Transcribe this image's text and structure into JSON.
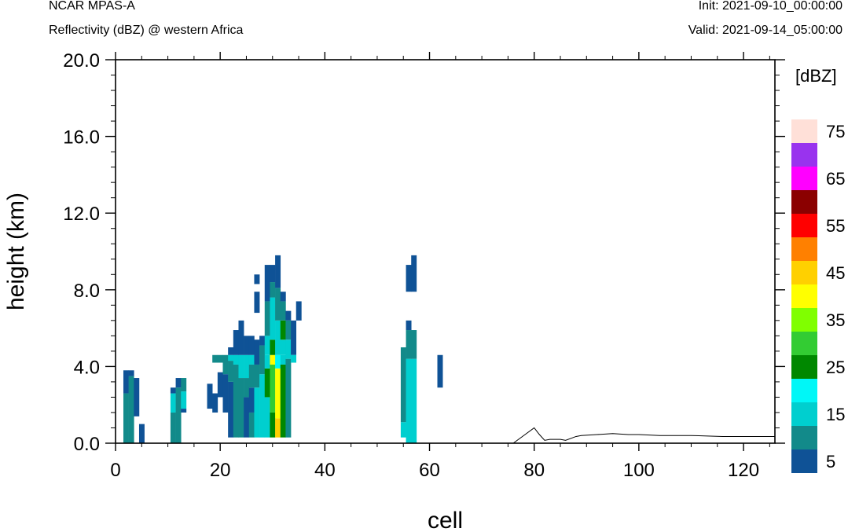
{
  "header": {
    "model": "NCAR MPAS-A",
    "field": "Reflectivity (dBZ) @ western Africa",
    "init": "Init: 2021-09-10_00:00:00",
    "valid": "Valid: 2021-09-14_05:00:00"
  },
  "chart_data": {
    "type": "heatmap",
    "xlabel": "cell",
    "ylabel": "height (km)",
    "xlim": [
      0,
      126
    ],
    "ylim": [
      0.0,
      20.0
    ],
    "x_ticks": [
      0,
      20,
      40,
      60,
      80,
      100,
      120
    ],
    "y_ticks": [
      0.0,
      4.0,
      8.0,
      12.0,
      16.0,
      20.0
    ],
    "y_tick_labels": [
      "0.0",
      "4.0",
      "8.0",
      "12.0",
      "16.0",
      "20.0"
    ],
    "grid": false,
    "colorbar": {
      "title": "[dBZ]",
      "placement": "right",
      "levels": [
        5,
        10,
        15,
        20,
        25,
        30,
        35,
        40,
        45,
        50,
        55,
        60,
        65,
        70,
        75
      ],
      "labels": [
        "5",
        "15",
        "25",
        "35",
        "45",
        "55",
        "65",
        "75"
      ],
      "colors": [
        "#0f5296",
        "#128a8a",
        "#00cfcf",
        "#00f7f7",
        "#008800",
        "#33cc33",
        "#80ff00",
        "#ffff00",
        "#ffd000",
        "#ff8000",
        "#ff0000",
        "#8b0000",
        "#ff00ff",
        "#9933ee",
        "#ffe0d8"
      ]
    },
    "cells": [
      {
        "x": 2,
        "y0": 0.0,
        "y1": 2.6,
        "dbz": 10
      },
      {
        "x": 2,
        "y0": 2.6,
        "y1": 3.8,
        "dbz": 5
      },
      {
        "x": 3,
        "y0": 0.0,
        "y1": 3.5,
        "dbz": 10
      },
      {
        "x": 3,
        "y0": 3.5,
        "y1": 3.8,
        "dbz": 5
      },
      {
        "x": 4,
        "y0": 1.4,
        "y1": 3.4,
        "dbz": 5
      },
      {
        "x": 5,
        "y0": 0.0,
        "y1": 1.0,
        "dbz": 5
      },
      {
        "x": 11,
        "y0": 0.0,
        "y1": 1.6,
        "dbz": 10
      },
      {
        "x": 11,
        "y0": 1.6,
        "y1": 2.6,
        "dbz": 15
      },
      {
        "x": 11,
        "y0": 2.6,
        "y1": 2.9,
        "dbz": 5
      },
      {
        "x": 12,
        "y0": 0.0,
        "y1": 2.9,
        "dbz": 10
      },
      {
        "x": 12,
        "y0": 2.9,
        "y1": 3.4,
        "dbz": 5
      },
      {
        "x": 13,
        "y0": 1.8,
        "y1": 2.7,
        "dbz": 15
      },
      {
        "x": 13,
        "y0": 2.7,
        "y1": 3.4,
        "dbz": 10
      },
      {
        "x": 13,
        "y0": 1.6,
        "y1": 1.8,
        "dbz": 5
      },
      {
        "x": 18,
        "y0": 1.8,
        "y1": 3.1,
        "dbz": 5
      },
      {
        "x": 19,
        "y0": 1.6,
        "y1": 2.6,
        "dbz": 5
      },
      {
        "x": 19,
        "y0": 4.2,
        "y1": 4.6,
        "dbz": 10
      },
      {
        "x": 20,
        "y0": 2.4,
        "y1": 3.7,
        "dbz": 5
      },
      {
        "x": 20,
        "y0": 4.2,
        "y1": 4.6,
        "dbz": 10
      },
      {
        "x": 21,
        "y0": 1.6,
        "y1": 3.6,
        "dbz": 5
      },
      {
        "x": 21,
        "y0": 3.6,
        "y1": 4.6,
        "dbz": 10
      },
      {
        "x": 22,
        "y0": 0.3,
        "y1": 3.2,
        "dbz": 5
      },
      {
        "x": 22,
        "y0": 3.2,
        "y1": 4.3,
        "dbz": 10
      },
      {
        "x": 22,
        "y0": 4.3,
        "y1": 4.6,
        "dbz": 15
      },
      {
        "x": 22,
        "y0": 4.6,
        "y1": 5.0,
        "dbz": 5
      },
      {
        "x": 23,
        "y0": 0.3,
        "y1": 4.1,
        "dbz": 10
      },
      {
        "x": 23,
        "y0": 4.1,
        "y1": 4.6,
        "dbz": 15
      },
      {
        "x": 23,
        "y0": 4.6,
        "y1": 5.9,
        "dbz": 5
      },
      {
        "x": 24,
        "y0": 0.3,
        "y1": 3.4,
        "dbz": 10
      },
      {
        "x": 24,
        "y0": 3.4,
        "y1": 4.6,
        "dbz": 15
      },
      {
        "x": 24,
        "y0": 4.6,
        "y1": 6.4,
        "dbz": 5
      },
      {
        "x": 25,
        "y0": 0.3,
        "y1": 2.4,
        "dbz": 5
      },
      {
        "x": 25,
        "y0": 2.4,
        "y1": 3.4,
        "dbz": 10
      },
      {
        "x": 25,
        "y0": 3.4,
        "y1": 4.6,
        "dbz": 15
      },
      {
        "x": 25,
        "y0": 4.6,
        "y1": 5.6,
        "dbz": 5
      },
      {
        "x": 26,
        "y0": 0.3,
        "y1": 1.6,
        "dbz": 10
      },
      {
        "x": 26,
        "y0": 1.6,
        "y1": 2.9,
        "dbz": 5
      },
      {
        "x": 26,
        "y0": 2.9,
        "y1": 4.1,
        "dbz": 10
      },
      {
        "x": 26,
        "y0": 4.1,
        "y1": 4.6,
        "dbz": 15
      },
      {
        "x": 26,
        "y0": 4.6,
        "y1": 5.6,
        "dbz": 5
      },
      {
        "x": 27,
        "y0": 0.3,
        "y1": 2.9,
        "dbz": 15
      },
      {
        "x": 27,
        "y0": 2.9,
        "y1": 4.1,
        "dbz": 10
      },
      {
        "x": 27,
        "y0": 4.1,
        "y1": 5.4,
        "dbz": 5
      },
      {
        "x": 27,
        "y0": 8.3,
        "y1": 8.8,
        "dbz": 5
      },
      {
        "x": 27,
        "y0": 6.8,
        "y1": 7.9,
        "dbz": 5
      },
      {
        "x": 28,
        "y0": 0.3,
        "y1": 3.6,
        "dbz": 15
      },
      {
        "x": 28,
        "y0": 3.6,
        "y1": 5.1,
        "dbz": 10
      },
      {
        "x": 28,
        "y0": 5.1,
        "y1": 5.6,
        "dbz": 5
      },
      {
        "x": 29,
        "y0": 0.3,
        "y1": 2.4,
        "dbz": 15
      },
      {
        "x": 29,
        "y0": 2.4,
        "y1": 3.9,
        "dbz": 25
      },
      {
        "x": 29,
        "y0": 3.9,
        "y1": 4.6,
        "dbz": 15
      },
      {
        "x": 29,
        "y0": 4.6,
        "y1": 5.6,
        "dbz": 15
      },
      {
        "x": 29,
        "y0": 5.6,
        "y1": 7.4,
        "dbz": 10
      },
      {
        "x": 29,
        "y0": 7.4,
        "y1": 9.3,
        "dbz": 5
      },
      {
        "x": 30,
        "y0": 0.3,
        "y1": 1.6,
        "dbz": 25
      },
      {
        "x": 30,
        "y0": 1.6,
        "y1": 4.1,
        "dbz": 30
      },
      {
        "x": 30,
        "y0": 4.1,
        "y1": 4.6,
        "dbz": 40
      },
      {
        "x": 30,
        "y0": 4.6,
        "y1": 5.4,
        "dbz": 25
      },
      {
        "x": 30,
        "y0": 5.4,
        "y1": 7.6,
        "dbz": 15
      },
      {
        "x": 30,
        "y0": 7.6,
        "y1": 8.4,
        "dbz": 10
      },
      {
        "x": 30,
        "y0": 8.4,
        "y1": 9.3,
        "dbz": 5
      },
      {
        "x": 31,
        "y0": 0.3,
        "y1": 1.3,
        "dbz": 45
      },
      {
        "x": 31,
        "y0": 1.3,
        "y1": 3.9,
        "dbz": 40
      },
      {
        "x": 31,
        "y0": 3.9,
        "y1": 4.6,
        "dbz": 20
      },
      {
        "x": 31,
        "y0": 4.6,
        "y1": 6.4,
        "dbz": 15
      },
      {
        "x": 31,
        "y0": 6.4,
        "y1": 8.1,
        "dbz": 10
      },
      {
        "x": 31,
        "y0": 8.1,
        "y1": 9.8,
        "dbz": 5
      },
      {
        "x": 32,
        "y0": 0.3,
        "y1": 4.1,
        "dbz": 25
      },
      {
        "x": 32,
        "y0": 4.1,
        "y1": 4.6,
        "dbz": 15
      },
      {
        "x": 32,
        "y0": 4.6,
        "y1": 5.4,
        "dbz": 15
      },
      {
        "x": 32,
        "y0": 5.4,
        "y1": 6.4,
        "dbz": 25
      },
      {
        "x": 32,
        "y0": 6.4,
        "y1": 7.4,
        "dbz": 10
      },
      {
        "x": 32,
        "y0": 7.4,
        "y1": 7.9,
        "dbz": 5
      },
      {
        "x": 33,
        "y0": 0.3,
        "y1": 4.4,
        "dbz": 10
      },
      {
        "x": 33,
        "y0": 4.4,
        "y1": 5.4,
        "dbz": 15
      },
      {
        "x": 33,
        "y0": 5.4,
        "y1": 6.4,
        "dbz": 10
      },
      {
        "x": 33,
        "y0": 6.4,
        "y1": 6.9,
        "dbz": 5
      },
      {
        "x": 34,
        "y0": 4.6,
        "y1": 6.4,
        "dbz": 5
      },
      {
        "x": 34,
        "y0": 4.2,
        "y1": 4.6,
        "dbz": 15
      },
      {
        "x": 35,
        "y0": 6.4,
        "y1": 7.4,
        "dbz": 5
      },
      {
        "x": 55,
        "y0": 0.3,
        "y1": 1.1,
        "dbz": 15
      },
      {
        "x": 55,
        "y0": 1.1,
        "y1": 5.0,
        "dbz": 10
      },
      {
        "x": 56,
        "y0": 0.0,
        "y1": 4.4,
        "dbz": 15
      },
      {
        "x": 56,
        "y0": 4.4,
        "y1": 5.9,
        "dbz": 10
      },
      {
        "x": 56,
        "y0": 5.9,
        "y1": 6.4,
        "dbz": 5
      },
      {
        "x": 56,
        "y0": 7.9,
        "y1": 9.3,
        "dbz": 5
      },
      {
        "x": 57,
        "y0": 0.0,
        "y1": 4.4,
        "dbz": 15
      },
      {
        "x": 57,
        "y0": 4.4,
        "y1": 5.9,
        "dbz": 10
      },
      {
        "x": 57,
        "y0": 7.9,
        "y1": 9.8,
        "dbz": 5
      },
      {
        "x": 62,
        "y0": 2.9,
        "y1": 4.6,
        "dbz": 5
      }
    ],
    "terrain": {
      "x": [
        0,
        76,
        78,
        80,
        81,
        82,
        83,
        85,
        86,
        88,
        89,
        92,
        95,
        98,
        100,
        104,
        110,
        116,
        120,
        126
      ],
      "y": [
        0.0,
        0.0,
        0.4,
        0.8,
        0.45,
        0.15,
        0.2,
        0.2,
        0.15,
        0.35,
        0.4,
        0.45,
        0.5,
        0.45,
        0.45,
        0.4,
        0.4,
        0.35,
        0.35,
        0.35
      ]
    }
  }
}
